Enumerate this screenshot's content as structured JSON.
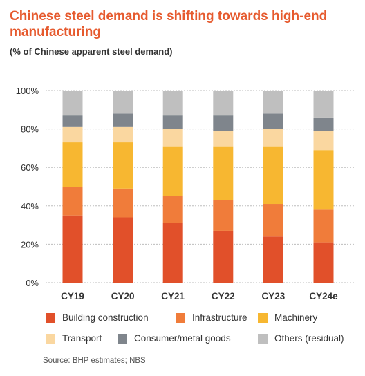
{
  "header": {
    "title": "Chinese steel demand is shifting towards high-end manufacturing",
    "subtitle": "(% of Chinese apparent steel demand)"
  },
  "source": "Source: BHP estimates; NBS",
  "colors": {
    "building": "#e1502a",
    "infrastructure": "#f07c3a",
    "machinery": "#f7b731",
    "transport": "#fad7a0",
    "consumer": "#7f858c",
    "others": "#bfbfbf"
  },
  "chart_data": {
    "type": "bar",
    "stacked": true,
    "categories": [
      "CY19",
      "CY20",
      "CY21",
      "CY22",
      "CY23",
      "CY24e"
    ],
    "ylim": [
      0,
      100
    ],
    "yticks": [
      0,
      20,
      40,
      60,
      80,
      100
    ],
    "ytick_labels": [
      "0%",
      "20%",
      "40%",
      "60%",
      "80%",
      "100%"
    ],
    "grid": true,
    "legend_position": "bottom",
    "series": [
      {
        "name": "Building construction",
        "color_key": "building",
        "values": [
          35,
          34,
          31,
          27,
          24,
          21
        ]
      },
      {
        "name": "Infrastructure",
        "color_key": "infrastructure",
        "values": [
          15,
          15,
          14,
          16,
          17,
          17
        ]
      },
      {
        "name": "Machinery",
        "color_key": "machinery",
        "values": [
          23,
          24,
          26,
          28,
          30,
          31
        ]
      },
      {
        "name": "Transport",
        "color_key": "transport",
        "values": [
          8,
          8,
          9,
          8,
          9,
          10
        ]
      },
      {
        "name": "Consumer/metal goods",
        "color_key": "consumer",
        "values": [
          6,
          7,
          7,
          8,
          8,
          7
        ]
      },
      {
        "name": "Others (residual)",
        "color_key": "others",
        "values": [
          13,
          12,
          13,
          13,
          12,
          14
        ]
      }
    ]
  }
}
